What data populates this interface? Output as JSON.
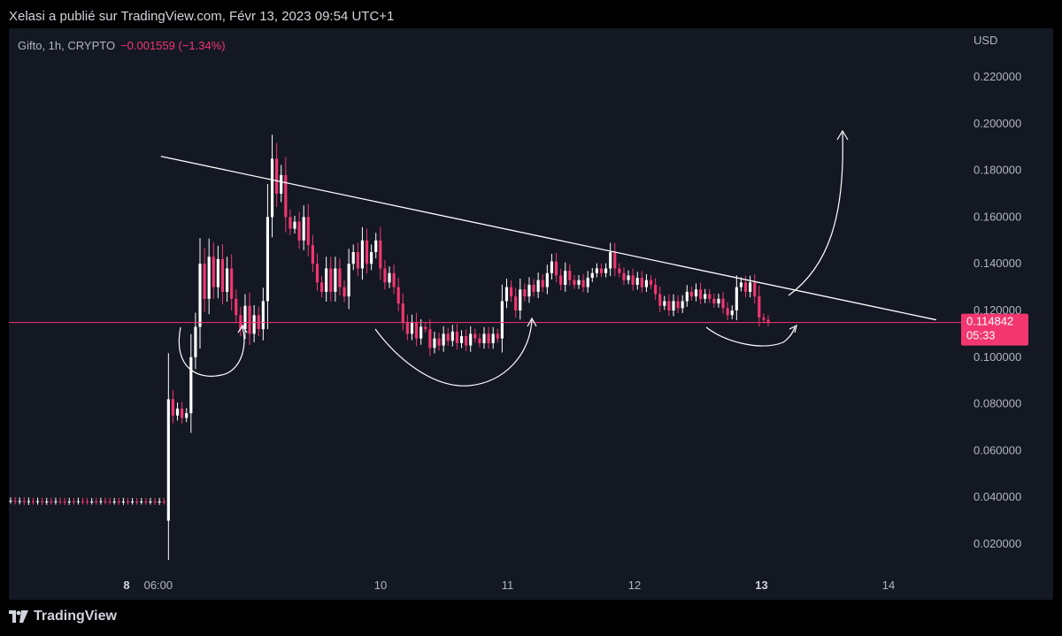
{
  "header": {
    "credit": "Xelasi a publié sur TradingView.com, Févr 13, 2023 09:54 UTC+1"
  },
  "legend": {
    "symbol": "Gifto, 1h, CRYPTO",
    "change": "−0.001559 (−1.34%)"
  },
  "footer": {
    "brand": "TradingView",
    "logo_icon": "tradingview-logo-icon"
  },
  "colors": {
    "panel_bg": "#141823",
    "up": "#ffffff",
    "down": "#f23670",
    "price_line": "#f23670",
    "axis_text": "#b2b5be",
    "annotation": "#ffffff"
  },
  "chart_data": {
    "type": "candlestick",
    "y_unit": "USD",
    "ylim": [
      0.0,
      0.23
    ],
    "y_ticks": [
      "0.020000",
      "0.040000",
      "0.060000",
      "0.080000",
      "0.100000",
      "0.120000",
      "0.140000",
      "0.160000",
      "0.180000",
      "0.200000",
      "0.220000"
    ],
    "x_ticks": [
      {
        "label": "8",
        "x": "2023-02-08 00:00",
        "bold": true
      },
      {
        "label": "06:00",
        "x": "2023-02-08 06:00",
        "bold": false
      },
      {
        "label": "10",
        "x": "2023-02-10 00:00",
        "bold": false
      },
      {
        "label": "11",
        "x": "2023-02-11 00:00",
        "bold": false
      },
      {
        "label": "12",
        "x": "2023-02-12 00:00",
        "bold": false
      },
      {
        "label": "13",
        "x": "2023-02-13 00:00",
        "bold": true
      },
      {
        "label": "14",
        "x": "2023-02-14 00:00",
        "bold": false
      }
    ],
    "last_price": {
      "value": 0.114842,
      "label": "0.114842",
      "countdown": "05:33"
    },
    "candles": [
      [
        0.0385,
        0.0385
      ],
      [
        0.0385,
        0.0382
      ],
      [
        0.0382,
        0.0384
      ],
      [
        0.0384,
        0.038
      ],
      [
        0.038,
        0.0383
      ],
      [
        0.0383,
        0.0381
      ],
      [
        0.0381,
        0.0383
      ],
      [
        0.0383,
        0.038
      ],
      [
        0.038,
        0.0382
      ],
      [
        0.0382,
        0.0381
      ],
      [
        0.0381,
        0.0383
      ],
      [
        0.0383,
        0.0382
      ],
      [
        0.0382,
        0.038
      ],
      [
        0.038,
        0.0382
      ],
      [
        0.0382,
        0.0381
      ],
      [
        0.0381,
        0.0383
      ],
      [
        0.0383,
        0.0382
      ],
      [
        0.0382,
        0.0381
      ],
      [
        0.0381,
        0.0382
      ],
      [
        0.0382,
        0.0381
      ],
      [
        0.0381,
        0.0383
      ],
      [
        0.0383,
        0.0382
      ],
      [
        0.0382,
        0.0381
      ],
      [
        0.0381,
        0.0382
      ],
      [
        0.0382,
        0.038
      ],
      [
        0.038,
        0.0382
      ],
      [
        0.0382,
        0.0381
      ],
      [
        0.0381,
        0.0382
      ],
      [
        0.0382,
        0.0381
      ],
      [
        0.0381,
        0.0382
      ],
      [
        0.0382,
        0.0381
      ],
      [
        0.0381,
        0.0382
      ],
      [
        0.0382,
        0.038
      ],
      [
        0.038,
        0.0382
      ],
      [
        0.0382,
        0.0381
      ],
      [
        0.03,
        0.082
      ],
      [
        0.082,
        0.075
      ],
      [
        0.075,
        0.078
      ],
      [
        0.078,
        0.074
      ],
      [
        0.074,
        0.076
      ],
      [
        0.076,
        0.1
      ],
      [
        0.1,
        0.113
      ],
      [
        0.113,
        0.14
      ],
      [
        0.14,
        0.125
      ],
      [
        0.125,
        0.143
      ],
      [
        0.143,
        0.13
      ],
      [
        0.13,
        0.142
      ],
      [
        0.142,
        0.128
      ],
      [
        0.128,
        0.138
      ],
      [
        0.138,
        0.125
      ],
      [
        0.125,
        0.118
      ],
      [
        0.118,
        0.112
      ],
      [
        0.112,
        0.122
      ],
      [
        0.122,
        0.11
      ],
      [
        0.11,
        0.118
      ],
      [
        0.118,
        0.112
      ],
      [
        0.112,
        0.124
      ],
      [
        0.124,
        0.16
      ],
      [
        0.16,
        0.185
      ],
      [
        0.185,
        0.17
      ],
      [
        0.17,
        0.178
      ],
      [
        0.178,
        0.16
      ],
      [
        0.16,
        0.155
      ],
      [
        0.155,
        0.158
      ],
      [
        0.158,
        0.15
      ],
      [
        0.15,
        0.16
      ],
      [
        0.16,
        0.148
      ],
      [
        0.148,
        0.14
      ],
      [
        0.14,
        0.132
      ],
      [
        0.132,
        0.128
      ],
      [
        0.128,
        0.138
      ],
      [
        0.138,
        0.128
      ],
      [
        0.128,
        0.138
      ],
      [
        0.138,
        0.13
      ],
      [
        0.13,
        0.126
      ],
      [
        0.126,
        0.14
      ],
      [
        0.14,
        0.145
      ],
      [
        0.145,
        0.138
      ],
      [
        0.138,
        0.15
      ],
      [
        0.15,
        0.14
      ],
      [
        0.14,
        0.145
      ],
      [
        0.145,
        0.15
      ],
      [
        0.15,
        0.138
      ],
      [
        0.138,
        0.132
      ],
      [
        0.132,
        0.136
      ],
      [
        0.136,
        0.13
      ],
      [
        0.13,
        0.123
      ],
      [
        0.123,
        0.115
      ],
      [
        0.115,
        0.11
      ],
      [
        0.11,
        0.115
      ],
      [
        0.115,
        0.108
      ],
      [
        0.108,
        0.113
      ],
      [
        0.113,
        0.112
      ],
      [
        0.112,
        0.104
      ],
      [
        0.104,
        0.108
      ],
      [
        0.108,
        0.105
      ],
      [
        0.105,
        0.11
      ],
      [
        0.11,
        0.107
      ],
      [
        0.107,
        0.111
      ],
      [
        0.111,
        0.106
      ],
      [
        0.106,
        0.109
      ],
      [
        0.109,
        0.105
      ],
      [
        0.105,
        0.11
      ],
      [
        0.11,
        0.108
      ],
      [
        0.108,
        0.106
      ],
      [
        0.106,
        0.11
      ],
      [
        0.11,
        0.106
      ],
      [
        0.106,
        0.11
      ],
      [
        0.11,
        0.108
      ],
      [
        0.108,
        0.124
      ],
      [
        0.124,
        0.13
      ],
      [
        0.13,
        0.126
      ],
      [
        0.126,
        0.12
      ],
      [
        0.12,
        0.129
      ],
      [
        0.129,
        0.126
      ],
      [
        0.126,
        0.131
      ],
      [
        0.131,
        0.128
      ],
      [
        0.128,
        0.133
      ],
      [
        0.133,
        0.13
      ],
      [
        0.13,
        0.136
      ],
      [
        0.136,
        0.141
      ],
      [
        0.141,
        0.135
      ],
      [
        0.135,
        0.131
      ],
      [
        0.131,
        0.137
      ],
      [
        0.137,
        0.133
      ],
      [
        0.133,
        0.131
      ],
      [
        0.131,
        0.133
      ],
      [
        0.133,
        0.13
      ],
      [
        0.13,
        0.134
      ],
      [
        0.134,
        0.136
      ],
      [
        0.136,
        0.138
      ],
      [
        0.138,
        0.136
      ],
      [
        0.136,
        0.138
      ],
      [
        0.138,
        0.145
      ],
      [
        0.145,
        0.138
      ],
      [
        0.138,
        0.136
      ],
      [
        0.136,
        0.133
      ],
      [
        0.133,
        0.135
      ],
      [
        0.135,
        0.131
      ],
      [
        0.131,
        0.134
      ],
      [
        0.134,
        0.13
      ],
      [
        0.13,
        0.133
      ],
      [
        0.133,
        0.131
      ],
      [
        0.131,
        0.127
      ],
      [
        0.127,
        0.122
      ],
      [
        0.122,
        0.124
      ],
      [
        0.124,
        0.12
      ],
      [
        0.12,
        0.124
      ],
      [
        0.124,
        0.121
      ],
      [
        0.121,
        0.124
      ],
      [
        0.124,
        0.128
      ],
      [
        0.128,
        0.126
      ],
      [
        0.126,
        0.129
      ],
      [
        0.129,
        0.125
      ],
      [
        0.125,
        0.127
      ],
      [
        0.127,
        0.125
      ],
      [
        0.125,
        0.123
      ],
      [
        0.123,
        0.125
      ],
      [
        0.125,
        0.121
      ],
      [
        0.121,
        0.118
      ],
      [
        0.118,
        0.12
      ],
      [
        0.12,
        0.13
      ],
      [
        0.13,
        0.132
      ],
      [
        0.132,
        0.128
      ],
      [
        0.128,
        0.132
      ],
      [
        0.132,
        0.126
      ],
      [
        0.126,
        0.117
      ],
      [
        0.117,
        0.116
      ],
      [
        0.116,
        0.1148
      ]
    ],
    "trendline": {
      "from": [
        0.186,
        "2023-02-08 06:30"
      ],
      "to": [
        0.116,
        "2023-02-14 09:00"
      ]
    },
    "price_line": 0.114842
  }
}
